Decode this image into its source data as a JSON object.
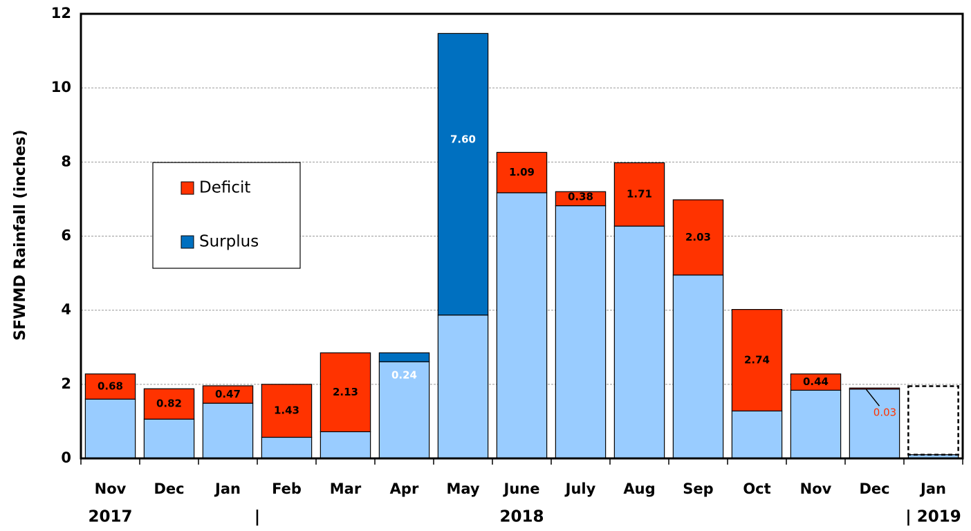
{
  "chart_data": {
    "type": "bar",
    "stacked": true,
    "y_label": "SFWMD Rainfall (inches)",
    "categories": [
      "Nov",
      "Dec",
      "Jan",
      "Feb",
      "Mar",
      "Apr",
      "May",
      "June",
      "July",
      "Aug",
      "Sep",
      "Oct",
      "Nov",
      "Dec",
      "Jan"
    ],
    "year_labels": [
      "2017",
      null,
      null,
      "|",
      null,
      null,
      null,
      "2018",
      null,
      null,
      null,
      null,
      null,
      null,
      "| 2019"
    ],
    "series": [
      {
        "color": "#99ccff",
        "values": [
          1.6,
          1.06,
          1.49,
          0.57,
          0.72,
          2.61,
          3.87,
          7.17,
          6.82,
          6.27,
          4.95,
          1.28,
          1.84,
          1.87,
          0.1
        ]
      },
      {
        "name": "Deficit",
        "color": "#ff3300",
        "label_color": "#000000",
        "values": [
          0.68,
          0.82,
          0.47,
          1.43,
          2.13,
          null,
          null,
          1.09,
          0.38,
          1.71,
          2.03,
          2.74,
          0.44,
          0.03,
          null
        ],
        "value_labels": [
          "0.68",
          "0.82",
          "0.47",
          "1.43",
          "2.13",
          null,
          null,
          "1.09",
          "0.38",
          "1.71",
          "2.03",
          "2.74",
          "0.44",
          "0.03",
          null
        ]
      },
      {
        "name": "Surplus",
        "color": "#0070c0",
        "label_color": "#ffffff",
        "values": [
          null,
          null,
          null,
          null,
          null,
          0.24,
          7.6,
          null,
          null,
          null,
          null,
          null,
          null,
          null,
          null
        ],
        "value_labels": [
          null,
          null,
          null,
          null,
          null,
          "0.24",
          "7.60",
          null,
          null,
          null,
          null,
          null,
          null,
          null,
          null
        ]
      },
      {
        "style": "dashed",
        "color": "#000000",
        "values": [
          null,
          null,
          null,
          null,
          null,
          null,
          null,
          null,
          null,
          null,
          null,
          null,
          null,
          null,
          1.85
        ]
      }
    ],
    "ylim": [
      0,
      12
    ],
    "yticks": [
      0,
      2,
      4,
      6,
      8,
      10,
      12
    ],
    "grid": true,
    "legend": "upper left"
  }
}
